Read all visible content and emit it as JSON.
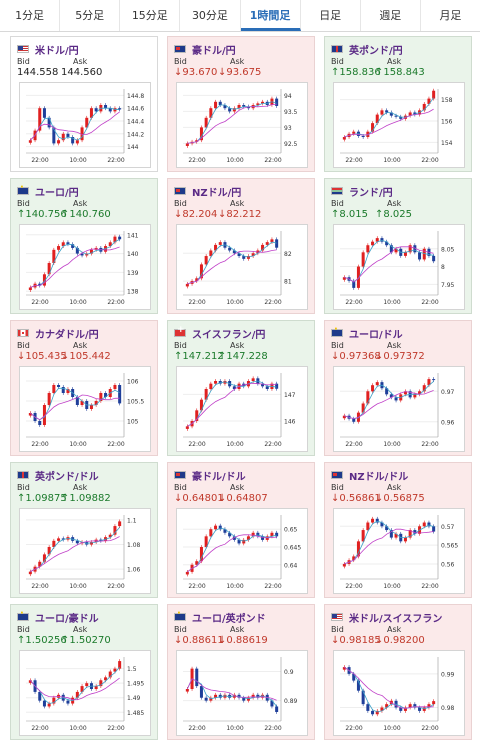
{
  "tabs": [
    {
      "label": "1分足",
      "active": false
    },
    {
      "label": "5分足",
      "active": false
    },
    {
      "label": "15分足",
      "active": false
    },
    {
      "label": "30分足",
      "active": false
    },
    {
      "label": "1時間足",
      "active": true
    },
    {
      "label": "日足",
      "active": false
    },
    {
      "label": "週足",
      "active": false
    },
    {
      "label": "月足",
      "active": false
    }
  ],
  "labels": {
    "bid": "Bid",
    "ask": "Ask"
  },
  "colors": {
    "up_text": "#1b7a2b",
    "down_text": "#c0392b",
    "bull_candle": "#e02020",
    "bear_candle": "#1f3f9a",
    "ma_short": "#3aa0c8",
    "ma_long": "#c040c8"
  },
  "cards": [
    {
      "title": "米ドル/円",
      "flag": "us-flag-icon",
      "trend": "flat",
      "bid": "144.558",
      "ask": "144.560",
      "chart_data": {
        "type": "candlestick",
        "xticks": [
          "22:00",
          "10:00",
          "22:00"
        ],
        "yticks": [
          "144",
          "144.2",
          "144.4",
          "144.6",
          "144.8"
        ],
        "ylim": [
          143.9,
          144.9
        ],
        "close": [
          144.1,
          144.25,
          144.6,
          144.45,
          144.3,
          144.05,
          144.1,
          144.2,
          144.15,
          144.05,
          144.1,
          144.3,
          144.45,
          144.6,
          144.55,
          144.65,
          144.6,
          144.55,
          144.6,
          144.58
        ]
      }
    },
    {
      "title": "豪ドル/円",
      "flag": "au-flag-icon",
      "trend": "down",
      "bid": "93.670",
      "ask": "93.675",
      "chart_data": {
        "type": "candlestick",
        "xticks": [
          "22:00",
          "10:00",
          "22:00"
        ],
        "yticks": [
          "92.5",
          "93",
          "93.5",
          "94"
        ],
        "ylim": [
          92.2,
          94.2
        ],
        "close": [
          92.5,
          92.55,
          92.6,
          93.0,
          93.3,
          93.6,
          93.8,
          93.7,
          93.6,
          93.5,
          93.6,
          93.7,
          93.65,
          93.6,
          93.7,
          93.75,
          93.8,
          93.7,
          93.9,
          93.67
        ]
      }
    },
    {
      "title": "英ポンド/円",
      "flag": "gb-flag-icon",
      "trend": "up",
      "bid": "158.836",
      "ask": "158.843",
      "chart_data": {
        "type": "candlestick",
        "xticks": [
          "22:00",
          "10:00",
          "22:00"
        ],
        "yticks": [
          "154",
          "156",
          "158"
        ],
        "ylim": [
          153.0,
          159.0
        ],
        "close": [
          154.5,
          154.8,
          155.0,
          154.6,
          154.5,
          155.0,
          155.8,
          156.6,
          157.0,
          156.8,
          156.5,
          156.4,
          156.2,
          156.5,
          156.8,
          156.6,
          157.0,
          157.6,
          158.1,
          158.84
        ]
      }
    },
    {
      "title": "ユーロ/円",
      "flag": "eu-flag-icon",
      "trend": "up",
      "bid": "140.756",
      "ask": "140.760",
      "chart_data": {
        "type": "candlestick",
        "xticks": [
          "22:00",
          "10:00",
          "22:00"
        ],
        "yticks": [
          "138",
          "139",
          "140",
          "141"
        ],
        "ylim": [
          137.8,
          141.2
        ],
        "close": [
          138.2,
          138.4,
          138.3,
          138.9,
          139.5,
          140.2,
          140.4,
          140.6,
          140.5,
          140.3,
          140.0,
          139.9,
          140.0,
          140.2,
          140.3,
          140.1,
          140.4,
          140.6,
          140.9,
          140.76
        ]
      }
    },
    {
      "title": "NZドル/円",
      "flag": "nz-flag-icon",
      "trend": "down",
      "bid": "82.204",
      "ask": "82.212",
      "chart_data": {
        "type": "candlestick",
        "xticks": [
          "22:00",
          "10:00",
          "22:00"
        ],
        "yticks": [
          "81",
          "82"
        ],
        "ylim": [
          80.5,
          82.8
        ],
        "close": [
          80.9,
          81.0,
          81.1,
          81.6,
          81.9,
          82.1,
          82.3,
          82.4,
          82.2,
          82.1,
          82.0,
          81.9,
          81.8,
          81.9,
          82.0,
          82.1,
          82.3,
          82.4,
          82.5,
          82.2
        ]
      }
    },
    {
      "title": "ランド/円",
      "flag": "za-flag-icon",
      "trend": "up",
      "bid": "8.015",
      "ask": "8.025",
      "chart_data": {
        "type": "candlestick",
        "xticks": [
          "22:00",
          "10:00",
          "22:00"
        ],
        "yticks": [
          "7.95",
          "8",
          "8.05"
        ],
        "ylim": [
          7.92,
          8.1
        ],
        "close": [
          7.97,
          7.96,
          7.94,
          8.0,
          8.04,
          8.06,
          8.07,
          8.08,
          8.07,
          8.06,
          8.04,
          8.05,
          8.03,
          8.04,
          8.06,
          8.04,
          8.02,
          8.05,
          8.03,
          8.015
        ]
      }
    },
    {
      "title": "カナダドル/円",
      "flag": "ca-flag-icon",
      "trend": "down",
      "bid": "105.435",
      "ask": "105.442",
      "chart_data": {
        "type": "candlestick",
        "xticks": [
          "22:00",
          "10:00",
          "22:00"
        ],
        "yticks": [
          "105",
          "105.5",
          "106"
        ],
        "ylim": [
          104.6,
          106.2
        ],
        "close": [
          105.2,
          105.0,
          104.9,
          105.4,
          105.7,
          105.9,
          105.85,
          105.7,
          105.8,
          105.6,
          105.4,
          105.5,
          105.3,
          105.4,
          105.5,
          105.7,
          105.6,
          105.8,
          105.9,
          105.44
        ]
      }
    },
    {
      "title": "スイスフラン/円",
      "flag": "ch-flag-icon",
      "trend": "up",
      "bid": "147.212",
      "ask": "147.228",
      "chart_data": {
        "type": "candlestick",
        "xticks": [
          "22:00",
          "10:00",
          "22:00"
        ],
        "yticks": [
          "146",
          "147"
        ],
        "ylim": [
          145.4,
          147.8
        ],
        "close": [
          145.8,
          146.0,
          146.4,
          146.8,
          147.2,
          147.4,
          147.5,
          147.4,
          147.5,
          147.3,
          147.2,
          147.4,
          147.3,
          147.5,
          147.6,
          147.4,
          147.3,
          147.2,
          147.4,
          147.21
        ]
      }
    },
    {
      "title": "ユーロ/ドル",
      "flag": "eu-us-flag-icon",
      "trend": "down",
      "bid": "0.97368",
      "ask": "0.97372",
      "chart_data": {
        "type": "candlestick",
        "xticks": [
          "22:00",
          "10:00",
          "22:00"
        ],
        "yticks": [
          "0.96",
          "0.97"
        ],
        "ylim": [
          0.955,
          0.976
        ],
        "close": [
          0.962,
          0.961,
          0.96,
          0.963,
          0.966,
          0.97,
          0.972,
          0.973,
          0.971,
          0.969,
          0.968,
          0.967,
          0.969,
          0.97,
          0.968,
          0.969,
          0.97,
          0.972,
          0.974,
          0.9737
        ]
      }
    },
    {
      "title": "英ポンド/ドル",
      "flag": "gb-us-flag-icon",
      "trend": "up",
      "bid": "1.09875",
      "ask": "1.09882",
      "chart_data": {
        "type": "candlestick",
        "xticks": [
          "22:00",
          "10:00",
          "22:00"
        ],
        "yticks": [
          "1.06",
          "1.08",
          "1.1"
        ],
        "ylim": [
          1.052,
          1.104
        ],
        "close": [
          1.058,
          1.062,
          1.066,
          1.072,
          1.078,
          1.083,
          1.085,
          1.084,
          1.086,
          1.083,
          1.081,
          1.082,
          1.08,
          1.082,
          1.084,
          1.083,
          1.086,
          1.088,
          1.095,
          1.0988
        ]
      }
    },
    {
      "title": "豪ドル/ドル",
      "flag": "au-us-flag-icon",
      "trend": "down",
      "bid": "0.64801",
      "ask": "0.64807",
      "chart_data": {
        "type": "candlestick",
        "xticks": [
          "22:00",
          "10:00",
          "22:00"
        ],
        "yticks": [
          "0.64",
          "0.645",
          "0.65"
        ],
        "ylim": [
          0.636,
          0.654
        ],
        "close": [
          0.638,
          0.64,
          0.641,
          0.645,
          0.648,
          0.65,
          0.651,
          0.65,
          0.649,
          0.648,
          0.647,
          0.646,
          0.647,
          0.648,
          0.649,
          0.648,
          0.647,
          0.648,
          0.649,
          0.648
        ]
      }
    },
    {
      "title": "NZドル/ドル",
      "flag": "nz-us-flag-icon",
      "trend": "down",
      "bid": "0.56861",
      "ask": "0.56875",
      "chart_data": {
        "type": "candlestick",
        "xticks": [
          "22:00",
          "10:00",
          "22:00"
        ],
        "yticks": [
          "0.56",
          "0.565",
          "0.57"
        ],
        "ylim": [
          0.556,
          0.573
        ],
        "close": [
          0.56,
          0.561,
          0.562,
          0.566,
          0.569,
          0.571,
          0.572,
          0.571,
          0.57,
          0.569,
          0.567,
          0.568,
          0.566,
          0.567,
          0.569,
          0.568,
          0.57,
          0.571,
          0.57,
          0.5686
        ]
      }
    },
    {
      "title": "ユーロ/豪ドル",
      "flag": "eu-au-flag-icon",
      "trend": "up",
      "bid": "1.50256",
      "ask": "1.50270",
      "chart_data": {
        "type": "candlestick",
        "xticks": [
          "22:00",
          "10:00",
          "22:00"
        ],
        "yticks": [
          "1.485",
          "1.49",
          "1.495",
          "1.5"
        ],
        "ylim": [
          1.482,
          1.504
        ],
        "close": [
          1.496,
          1.492,
          1.489,
          1.487,
          1.488,
          1.49,
          1.491,
          1.489,
          1.488,
          1.49,
          1.492,
          1.494,
          1.495,
          1.493,
          1.494,
          1.496,
          1.497,
          1.499,
          1.5,
          1.5026
        ]
      }
    },
    {
      "title": "ユーロ/英ポンド",
      "flag": "eu-gb-flag-icon",
      "trend": "down",
      "bid": "0.88611",
      "ask": "0.88619",
      "chart_data": {
        "type": "candlestick",
        "xticks": [
          "22:00",
          "10:00",
          "22:00"
        ],
        "yticks": [
          "0.89",
          "0.9"
        ],
        "ylim": [
          0.883,
          0.905
        ],
        "close": [
          0.894,
          0.901,
          0.895,
          0.891,
          0.89,
          0.891,
          0.892,
          0.891,
          0.892,
          0.891,
          0.892,
          0.891,
          0.89,
          0.891,
          0.892,
          0.891,
          0.892,
          0.89,
          0.888,
          0.8861
        ]
      }
    },
    {
      "title": "米ドル/スイスフラン",
      "flag": "us-ch-flag-icon",
      "trend": "down",
      "bid": "0.98185",
      "ask": "0.98200",
      "chart_data": {
        "type": "candlestick",
        "xticks": [
          "22:00",
          "10:00",
          "22:00"
        ],
        "yticks": [
          "0.98",
          "0.99"
        ],
        "ylim": [
          0.976,
          0.995
        ],
        "close": [
          0.992,
          0.99,
          0.988,
          0.985,
          0.981,
          0.979,
          0.978,
          0.979,
          0.98,
          0.981,
          0.982,
          0.98,
          0.979,
          0.98,
          0.981,
          0.98,
          0.979,
          0.98,
          0.981,
          0.9819
        ]
      }
    }
  ]
}
